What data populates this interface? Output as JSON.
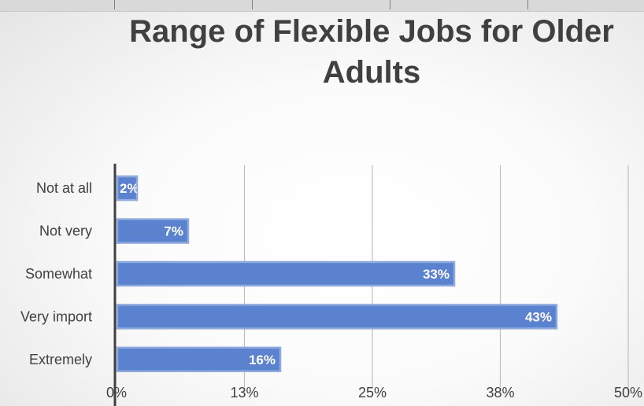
{
  "chart_data": {
    "type": "bar",
    "orientation": "horizontal",
    "title": "Range of Flexible Jobs for Older Adults",
    "xlabel": "",
    "ylabel": "",
    "categories": [
      "Not at all",
      "Not very",
      "Somewhat",
      "Very import",
      "Extremely"
    ],
    "values": [
      0.02,
      0.07,
      0.33,
      0.43,
      0.16
    ],
    "data_labels": [
      "2%",
      "7%",
      "33%",
      "43%",
      "16%"
    ],
    "xlim": [
      0,
      0.5
    ],
    "x_ticks": [
      0,
      0.125,
      0.25,
      0.375,
      0.5
    ],
    "x_tick_labels": [
      "0%",
      "13%",
      "25%",
      "38%",
      "50%"
    ],
    "grid": "vertical",
    "legend": "none",
    "colors": {
      "bar": "#4472C4",
      "bar_fill": "#5B82CF",
      "bar_edge": "#8FAADC",
      "grid": "#bfbfbf",
      "axis": "#404040",
      "text": "#404040"
    }
  }
}
